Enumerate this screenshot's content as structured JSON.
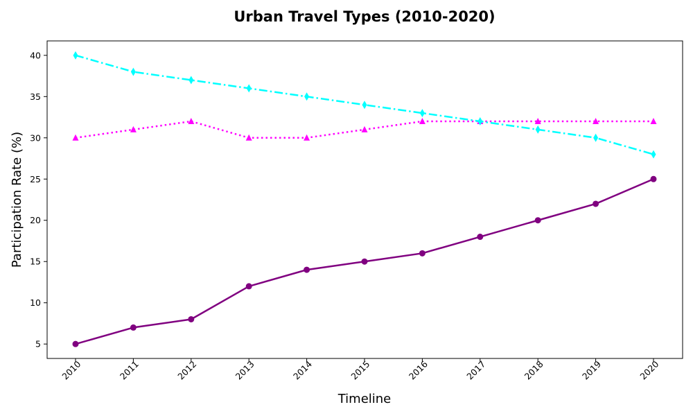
{
  "chart_data": {
    "type": "line",
    "title": "Urban Travel Types (2010-2020)",
    "xlabel": "Timeline",
    "ylabel": "Participation Rate (%)",
    "categories": [
      "2010",
      "2011",
      "2012",
      "2013",
      "2014",
      "2015",
      "2016",
      "2017",
      "2018",
      "2019",
      "2020"
    ],
    "yticks": [
      5,
      10,
      15,
      20,
      25,
      30,
      35,
      40
    ],
    "ylim": [
      3.25,
      41.75
    ],
    "grid": false,
    "legend": false,
    "xtick_rotation": 45,
    "series": [
      {
        "values": [
          5,
          7,
          8,
          12,
          14,
          15,
          16,
          18,
          20,
          22,
          25
        ],
        "color": "#800080",
        "line_style": "solid",
        "marker": "circle"
      },
      {
        "values": [
          30,
          31,
          32,
          30,
          30,
          31,
          32,
          32,
          32,
          32,
          32
        ],
        "color": "#ff00ff",
        "line_style": "dotted",
        "marker": "triangle"
      },
      {
        "values": [
          40,
          38,
          37,
          36,
          35,
          34,
          33,
          32,
          31,
          30,
          28
        ],
        "color": "#00ffff",
        "line_style": "dashdot",
        "marker": "thin-diamond"
      }
    ]
  }
}
